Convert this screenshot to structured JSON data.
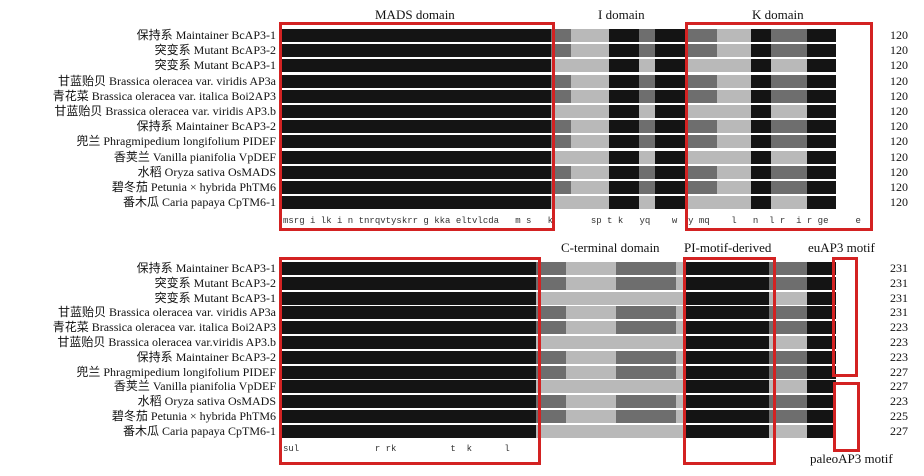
{
  "top_domains": {
    "mads": "MADS domain",
    "i": "I domain",
    "k": "K domain"
  },
  "bottom_domains": {
    "cterm": "C-terminal domain",
    "pi": "PI-motif-derived",
    "euap3": "euAP3 motif",
    "paleoap3": "paleoAP3 motif"
  },
  "top_block": {
    "rows": [
      {
        "cn": "保持系",
        "en": "Maintainer BcAP3-1",
        "end": "120"
      },
      {
        "cn": "突变系",
        "en": "Mutant BcAP3-2",
        "end": "120"
      },
      {
        "cn": "突变系",
        "en": "Mutant BcAP3-1",
        "end": "120"
      },
      {
        "cn": "甘蓝贻贝",
        "en": "Brassica oleracea var. viridis AP3a",
        "end": "120"
      },
      {
        "cn": "青花菜",
        "en": "Brassica oleracea var. italica Boi2AP3",
        "end": "120"
      },
      {
        "cn": "甘蓝贻贝",
        "en": "Brassica oleracea var. viridis AP3.b",
        "end": "120"
      },
      {
        "cn": "保持系",
        "en": "Maintainer BcAP3-2",
        "end": "120"
      },
      {
        "cn": "兜兰",
        "en": "Phragmipedium longifolium PIDEF",
        "end": "120"
      },
      {
        "cn": "香荚兰",
        "en": "Vanilla pianifolia VpDEF",
        "end": "120"
      },
      {
        "cn": "水稻",
        "en": "Oryza sativa OsMADS",
        "end": "120"
      },
      {
        "cn": "碧冬茄",
        "en": "Petunia × hybrida PhTM6",
        "end": "120"
      },
      {
        "cn": "番木瓜",
        "en": "Caria papaya CpTM6-1",
        "end": "120"
      }
    ],
    "consensus": "msrg i lk i n tnrqvtyskrr g kka eltvlcda   m s   k       sp t k   yq    w  y mq    l   n  l r  i r ge     e"
  },
  "bottom_block": {
    "rows": [
      {
        "cn": "保持系",
        "en": "Maintainer BcAP3-1",
        "end": "231"
      },
      {
        "cn": "突变系",
        "en": "Mutant BcAP3-2",
        "end": "231"
      },
      {
        "cn": "突变系",
        "en": "Mutant BcAP3-1",
        "end": "231"
      },
      {
        "cn": "甘蓝贻贝",
        "en": "Brassica oleracea var. viridis AP3a",
        "end": "231"
      },
      {
        "cn": "青花菜",
        "en": "Brassica oleracea var. italica Boi2AP3",
        "end": "223"
      },
      {
        "cn": "甘蓝贻贝",
        "en": "Brassica oleracea var.viridis AP3.b",
        "end": "223"
      },
      {
        "cn": "保持系",
        "en": "Maintainer BcAP3-2",
        "end": "223"
      },
      {
        "cn": "兜兰",
        "en": "Phragmipedium longifolium PIDEF",
        "end": "227"
      },
      {
        "cn": "香荚兰",
        "en": "Vanilla pianifolia VpDEF",
        "end": "227"
      },
      {
        "cn": "水稻",
        "en": "Oryza sativa OsMADS",
        "end": "223"
      },
      {
        "cn": "碧冬茄",
        "en": "Petunia × hybrida PhTM6",
        "end": "225"
      },
      {
        "cn": "番木瓜",
        "en": "Caria papaya CpTM6-1",
        "end": "227"
      }
    ],
    "consensus": "sul              r rk          t  k      l"
  },
  "colors": {
    "box": "#d32222",
    "identical": "#141414",
    "similar": "#6e6e6e",
    "partial": "#b9b9b9"
  }
}
